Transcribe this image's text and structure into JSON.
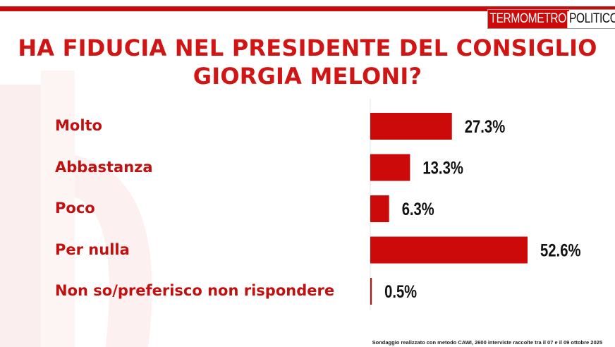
{
  "logo": {
    "part1": "TERMOMETRO",
    "part2": "POLITICO"
  },
  "title_line1": "HA FIDUCIA NEL PRESIDENTE DEL CONSIGLIO",
  "title_line2": "GIORGIA MELONI?",
  "footnote": "Sondaggio realizzato con metodo CAWI, 2600 interviste raccolte tra il 07 e il 09 ottobre  2025",
  "colors": {
    "accent": "#cc0a0a",
    "text_red": "#c01010"
  },
  "chart_data": {
    "type": "bar",
    "orientation": "horizontal",
    "title": "HA FIDUCIA NEL PRESIDENTE DEL CONSIGLIO GIORGIA MELONI?",
    "categories": [
      "Molto",
      "Abbastanza",
      "Poco",
      "Per nulla",
      "Non so/preferisco non rispondere"
    ],
    "values": [
      27.3,
      13.3,
      6.3,
      52.6,
      0.5
    ],
    "value_labels": [
      "27.3%",
      "13.3%",
      "6.3%",
      "52.6%",
      "0.5%"
    ],
    "unit": "%",
    "xlim": [
      0,
      52.6
    ],
    "grid": false,
    "legend": "none"
  }
}
